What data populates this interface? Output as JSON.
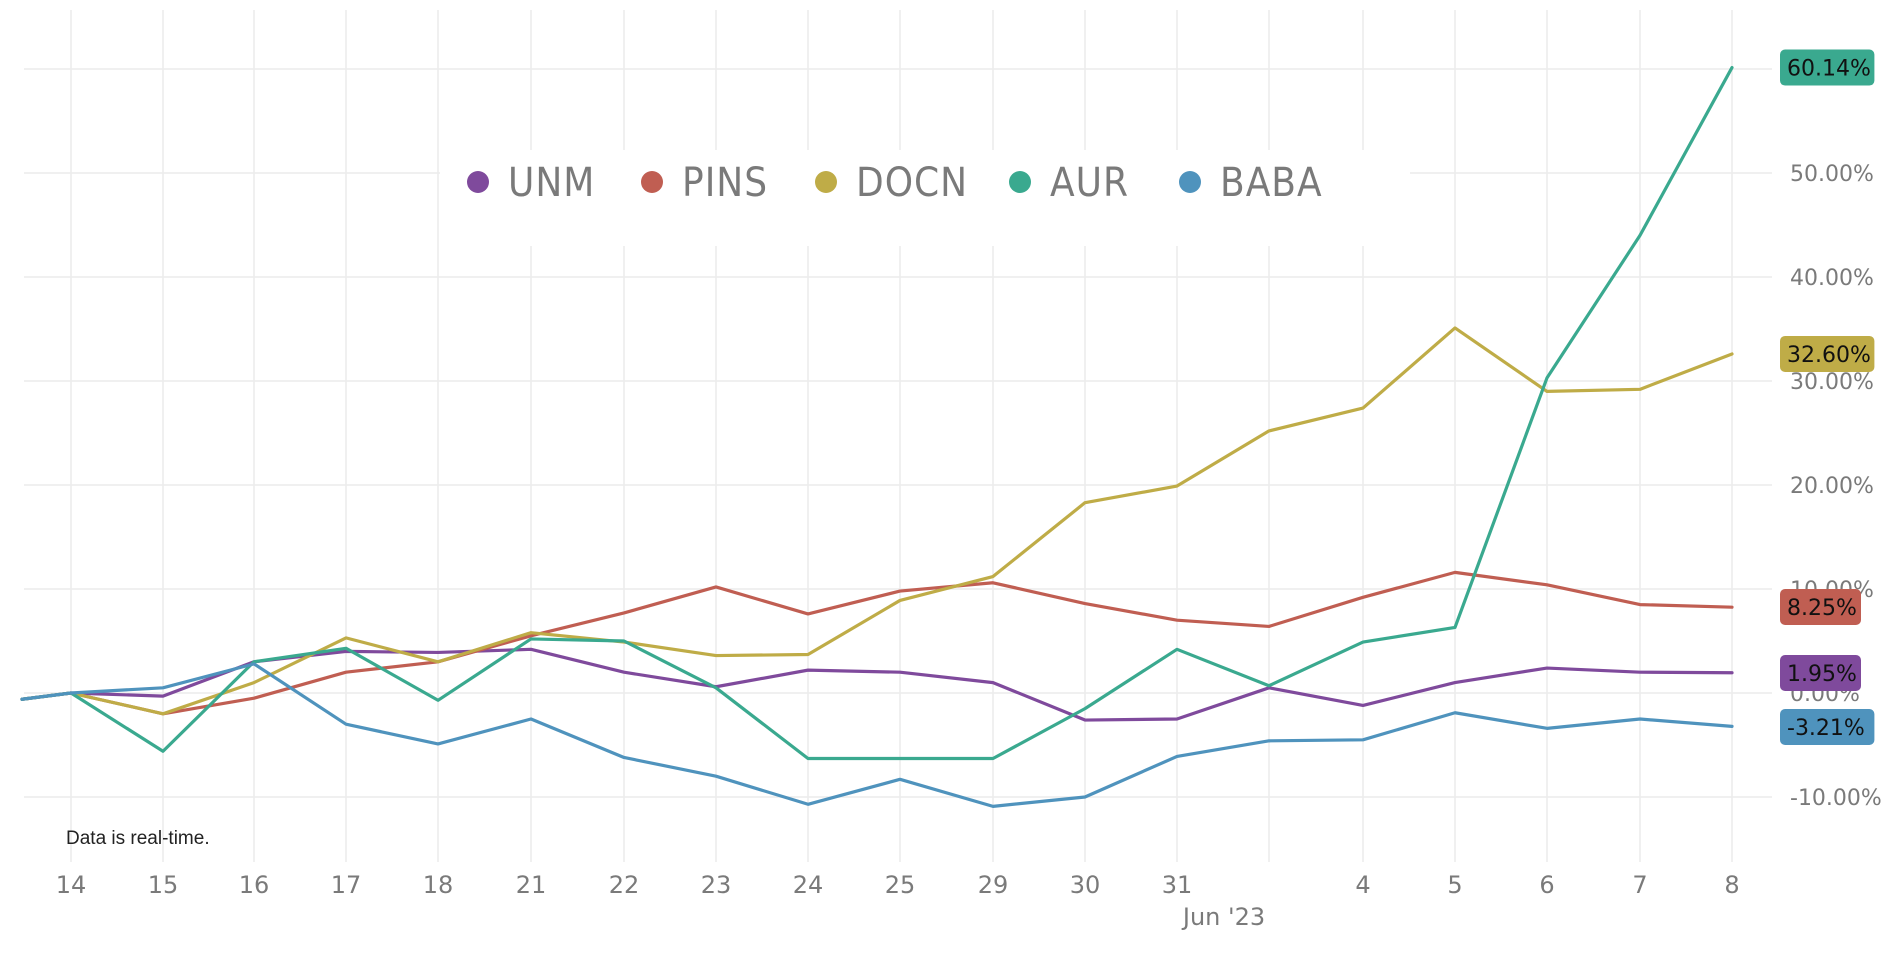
{
  "chart_data": {
    "type": "line",
    "title": "",
    "xlabel": "",
    "ylabel": "",
    "x_ticks": [
      "14",
      "15",
      "16",
      "17",
      "18",
      "21",
      "22",
      "23",
      "24",
      "25",
      "29",
      "30",
      "31",
      "",
      "4",
      "5",
      "6",
      "7",
      "8"
    ],
    "month_label": "Jun '23",
    "y_ticks": [
      "-10.00%",
      "0.00%",
      "10.00%",
      "20.00%",
      "30.00%",
      "40.00%",
      "50.00%"
    ],
    "y_tick_values": [
      -10,
      0,
      10,
      20,
      30,
      40,
      50
    ],
    "ylim": [
      -16,
      66
    ],
    "grid": true,
    "legend_position": "top-center",
    "note": "Data is real-time.",
    "series": [
      {
        "name": "UNM",
        "color": "#7f4a9c",
        "end_label": "1.95%",
        "values": [
          0.0,
          -0.3,
          3.0,
          4.0,
          3.9,
          4.2,
          2.0,
          0.6,
          2.2,
          2.0,
          1.0,
          -2.6,
          -2.5,
          0.5,
          -1.2,
          1.0,
          2.4,
          2.0,
          1.95
        ]
      },
      {
        "name": "PINS",
        "color": "#c05e52",
        "end_label": "8.25%",
        "values": [
          0.0,
          -2.0,
          -0.5,
          2.0,
          3.0,
          5.5,
          7.7,
          10.2,
          7.6,
          9.8,
          10.6,
          8.6,
          7.0,
          6.4,
          9.2,
          11.6,
          10.4,
          8.5,
          8.25
        ]
      },
      {
        "name": "DOCN",
        "color": "#bfac47",
        "end_label": "32.60%",
        "values": [
          0.0,
          -2.0,
          1.0,
          5.3,
          3.0,
          5.8,
          4.9,
          3.6,
          3.7,
          8.9,
          11.2,
          18.3,
          19.9,
          25.2,
          27.4,
          35.1,
          29.0,
          29.2,
          32.6
        ]
      },
      {
        "name": "AUR",
        "color": "#3aa98f",
        "end_label": "60.14%",
        "values": [
          0.0,
          -5.6,
          3.0,
          4.3,
          -0.7,
          5.2,
          5.0,
          0.5,
          -6.3,
          -6.3,
          -6.3,
          -1.5,
          4.2,
          0.7,
          4.9,
          6.3,
          30.3,
          44.0,
          60.14
        ]
      },
      {
        "name": "BABA",
        "color": "#4f93bd",
        "end_label": "-3.21%",
        "values": [
          0.0,
          0.5,
          2.8,
          -3.0,
          -4.9,
          -2.5,
          -6.2,
          -8.0,
          -10.7,
          -8.3,
          -10.9,
          -10.0,
          -6.1,
          -4.6,
          -4.5,
          -1.9,
          -3.4,
          -2.5,
          -3.21
        ]
      }
    ]
  }
}
